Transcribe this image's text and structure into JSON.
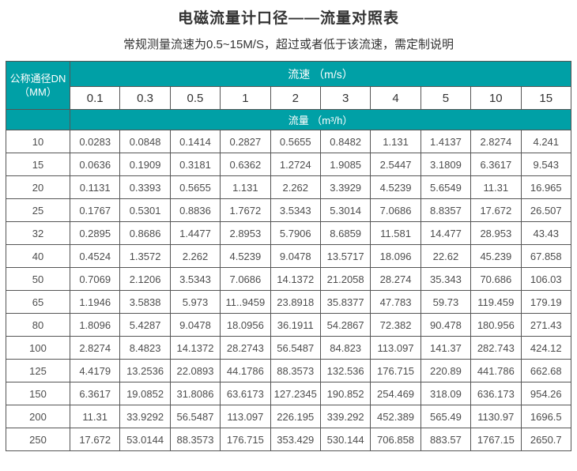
{
  "title": "电磁流量计口径——流量对照表",
  "subtitle": "常规测量流速为0.5~15M/S，超过或者低于该流速，需定制说明",
  "colors": {
    "header_teal": "#00A0A6",
    "border_gray": "#555555",
    "title_text": "#333333",
    "cell_text": "#4d4d4d"
  },
  "table": {
    "corner_header_line1": "公称通径DN",
    "corner_header_line2": "（MM）",
    "velocity_header": "流速 （m/s）",
    "flow_header": "流量 （m³/h）",
    "velocities": [
      "0.1",
      "0.3",
      "0.5",
      "1",
      "2",
      "3",
      "4",
      "5",
      "10",
      "15"
    ],
    "rows": [
      {
        "dn": "10",
        "values": [
          "0.0283",
          "0.0848",
          "0.1414",
          "0.2827",
          "0.5655",
          "0.8482",
          "1.131",
          "1.4137",
          "2.8274",
          "4.241"
        ]
      },
      {
        "dn": "15",
        "values": [
          "0.0636",
          "0.1909",
          "0.3181",
          "0.6362",
          "1.2724",
          "1.9085",
          "2.5447",
          "3.1809",
          "6.3617",
          "9.543"
        ]
      },
      {
        "dn": "20",
        "values": [
          "0.1131",
          "0.3393",
          "0.5655",
          "1.131",
          "2.262",
          "3.3929",
          "4.5239",
          "5.6549",
          "11.31",
          "16.965"
        ]
      },
      {
        "dn": "25",
        "values": [
          "0.1767",
          "0.5301",
          "0.8836",
          "1.7672",
          "3.5343",
          "5.3014",
          "7.0686",
          "8.8357",
          "17.672",
          "26.507"
        ]
      },
      {
        "dn": "32",
        "values": [
          "0.2895",
          "0.8686",
          "1.4477",
          "2.8953",
          "5.7906",
          "8.6859",
          "11.581",
          "14.477",
          "28.953",
          "43.43"
        ]
      },
      {
        "dn": "40",
        "values": [
          "0.4524",
          "1.3572",
          "2.262",
          "4.5239",
          "9.0478",
          "13.5717",
          "18.096",
          "22.62",
          "45.239",
          "67.858"
        ]
      },
      {
        "dn": "50",
        "values": [
          "0.7069",
          "2.1206",
          "3.5343",
          "7.0686",
          "14.1372",
          "21.2058",
          "28.274",
          "35.343",
          "70.686",
          "106.03"
        ]
      },
      {
        "dn": "65",
        "values": [
          "1.1946",
          "3.5838",
          "5.973",
          "11..9459",
          "23.8918",
          "35.8377",
          "47.783",
          "59.73",
          "119.459",
          "179.19"
        ]
      },
      {
        "dn": "80",
        "values": [
          "1.8096",
          "5.4287",
          "9.0478",
          "18.0956",
          "36.1911",
          "54.2867",
          "72.382",
          "90.478",
          "180.956",
          "271.43"
        ]
      },
      {
        "dn": "100",
        "values": [
          "2.8274",
          "8.4823",
          "14.1372",
          "28.2743",
          "56.5487",
          "84.823",
          "113.097",
          "141.37",
          "282.743",
          "424.12"
        ]
      },
      {
        "dn": "125",
        "values": [
          "4.4179",
          "13.2536",
          "22.0893",
          "44.1786",
          "88.3573",
          "132.536",
          "176.715",
          "220.89",
          "441.786",
          "662.68"
        ]
      },
      {
        "dn": "150",
        "values": [
          "6.3617",
          "19.0852",
          "31.8086",
          "63.6173",
          "127.2345",
          "190.852",
          "254.469",
          "318.09",
          "636.173",
          "954.26"
        ]
      },
      {
        "dn": "200",
        "values": [
          "11.31",
          "33.9292",
          "56.5487",
          "113.097",
          "226.195",
          "339.292",
          "452.389",
          "565.49",
          "1130.97",
          "1696.5"
        ]
      },
      {
        "dn": "250",
        "values": [
          "17.672",
          "53.0144",
          "88.3573",
          "176.715",
          "353.429",
          "530.144",
          "706.858",
          "883.57",
          "1767.15",
          "2650.7"
        ]
      }
    ]
  }
}
